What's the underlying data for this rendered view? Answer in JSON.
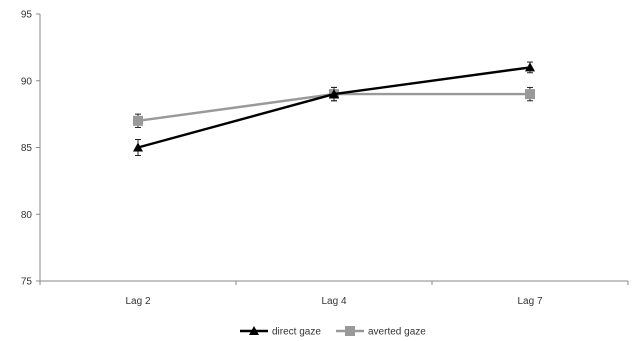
{
  "chart_data": {
    "type": "line",
    "title": "",
    "xlabel": "",
    "ylabel": "",
    "categories": [
      "Lag 2",
      "Lag 4",
      "Lag 7"
    ],
    "ylim": [
      75,
      95
    ],
    "yticks": [
      75,
      80,
      85,
      90,
      95
    ],
    "grid": false,
    "legend_position": "bottom",
    "series": [
      {
        "name": "direct gaze",
        "values": [
          85,
          89,
          91
        ],
        "error": [
          0.6,
          0.5,
          0.4
        ],
        "color": "#000000",
        "marker": "triangle"
      },
      {
        "name": "averted gaze",
        "values": [
          87,
          89,
          89
        ],
        "error": [
          0.5,
          0.5,
          0.5
        ],
        "color": "#999999",
        "marker": "square"
      }
    ]
  }
}
